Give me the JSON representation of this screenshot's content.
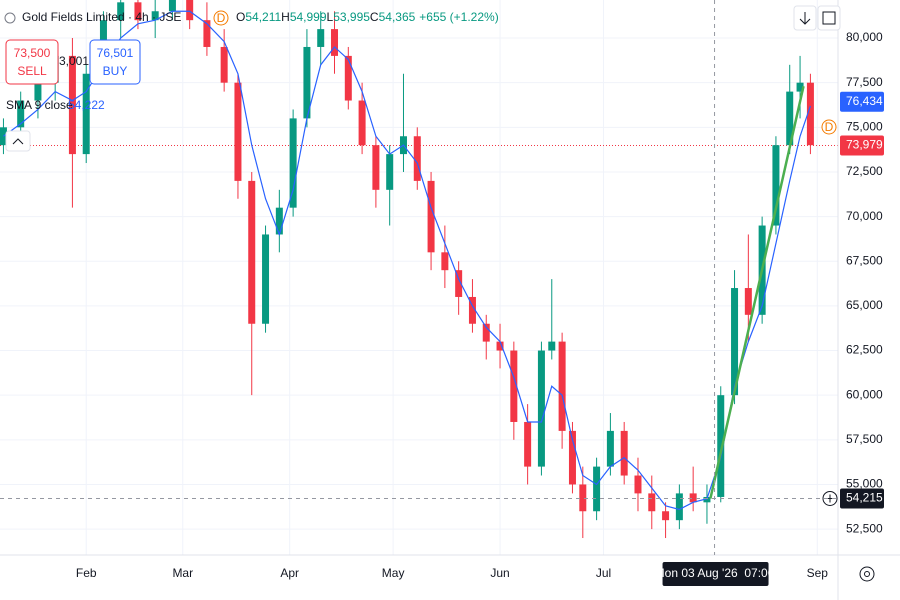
{
  "chart_data": {
    "type": "candlestick",
    "title": "Gold Fields Limited · 4h · JSE",
    "badge": "D",
    "ohlc": [
      {
        "key": "O",
        "value": "54,211"
      },
      {
        "key": "H",
        "value": "54,999"
      },
      {
        "key": "L",
        "value": "53,995"
      },
      {
        "key": "C",
        "value": "54,365"
      }
    ],
    "change": "+655 (+1.22%)",
    "sell": {
      "price": "73,500",
      "label": "SELL"
    },
    "spread": "3,001",
    "buy": {
      "price": "76,501",
      "label": "BUY"
    },
    "indicator": {
      "name": "SMA 9 close",
      "value": "54,222",
      "color": "#2962ff"
    },
    "up_color": "#089981",
    "down_color": "#f23645",
    "grid": true,
    "xlim": [
      6,
      249
    ],
    "ylim": [
      51050,
      82130
    ],
    "xticks": [
      {
        "value": 31,
        "label": "Feb"
      },
      {
        "value": 59,
        "label": "Mar"
      },
      {
        "value": 90,
        "label": "Apr"
      },
      {
        "value": 120,
        "label": "May"
      },
      {
        "value": 151,
        "label": "Jun"
      },
      {
        "value": 181,
        "label": "Jul"
      },
      {
        "value": 243,
        "label": "Sep"
      }
    ],
    "yticks": [
      {
        "value": 52500,
        "label": "52,500"
      },
      {
        "value": 55000,
        "label": "55,000"
      },
      {
        "value": 57500,
        "label": "57,500"
      },
      {
        "value": 60000,
        "label": "60,000"
      },
      {
        "value": 62500,
        "label": "62,500"
      },
      {
        "value": 65000,
        "label": "65,000"
      },
      {
        "value": 67500,
        "label": "67,500"
      },
      {
        "value": 70000,
        "label": "70,000"
      },
      {
        "value": 72500,
        "label": "72,500"
      },
      {
        "value": 75000,
        "label": "75,000"
      },
      {
        "value": 77500,
        "label": "77,500"
      },
      {
        "value": 80000,
        "label": "80,000"
      }
    ],
    "x": [
      7,
      12,
      17,
      22,
      27,
      31,
      36,
      41,
      46,
      51,
      56,
      61,
      66,
      71,
      75,
      79,
      83,
      87,
      91,
      95,
      99,
      103,
      107,
      111,
      115,
      119,
      123,
      127,
      131,
      135,
      139,
      143,
      147,
      151,
      155,
      159,
      163,
      166,
      169,
      172,
      175,
      179,
      183,
      187,
      191,
      195,
      199,
      203,
      207,
      211,
      215,
      219,
      223,
      227,
      231,
      235,
      238,
      241
    ],
    "open": [
      74000,
      75000,
      76500,
      77500,
      79000,
      73500,
      78000,
      81000,
      82000,
      81000,
      81500,
      82500,
      81000,
      79500,
      77500,
      72000,
      64000,
      69000,
      70500,
      75500,
      79500,
      80500,
      79000,
      76500,
      74000,
      71500,
      73500,
      74500,
      72000,
      68000,
      67000,
      65500,
      64000,
      63000,
      62500,
      58500,
      56000,
      62500,
      63000,
      58000,
      55000,
      53500,
      56000,
      58000,
      55500,
      54500,
      53500,
      53000,
      54500,
      54000,
      54300,
      60000,
      66000,
      64500,
      69500,
      74000,
      77000,
      77500
    ],
    "high": [
      75500,
      77000,
      78000,
      79500,
      80000,
      78500,
      81500,
      82500,
      83000,
      82500,
      83000,
      83000,
      82000,
      80500,
      78000,
      72500,
      69500,
      71500,
      76000,
      80500,
      81500,
      81500,
      79500,
      77500,
      74500,
      74000,
      78000,
      75000,
      72500,
      69500,
      67500,
      66500,
      64500,
      64000,
      63000,
      59500,
      63000,
      66500,
      63500,
      58500,
      56000,
      56500,
      59000,
      58500,
      56500,
      55500,
      54000,
      55000,
      56000,
      55000,
      60500,
      67000,
      69000,
      70000,
      74500,
      78500,
      79000,
      78000
    ],
    "low": [
      73500,
      74500,
      75500,
      76500,
      70500,
      73000,
      77500,
      80000,
      80500,
      80000,
      81000,
      80500,
      79000,
      77000,
      71000,
      60000,
      63500,
      68000,
      70000,
      75000,
      78500,
      78000,
      76000,
      73500,
      70500,
      69500,
      72500,
      71500,
      67000,
      66000,
      64500,
      63500,
      62000,
      61500,
      57500,
      55000,
      55500,
      62000,
      57000,
      54500,
      52000,
      53000,
      55500,
      55000,
      53500,
      52500,
      52000,
      52500,
      53500,
      52800,
      54000,
      59500,
      63000,
      64000,
      69000,
      73500,
      75500,
      73500
    ],
    "close": [
      75000,
      76500,
      77500,
      79000,
      73500,
      78000,
      81000,
      82000,
      81000,
      81500,
      82500,
      81000,
      79500,
      77500,
      72000,
      64000,
      69000,
      70500,
      75500,
      79500,
      80500,
      79000,
      76500,
      74000,
      71500,
      73500,
      74500,
      72000,
      68000,
      67000,
      65500,
      64000,
      63000,
      62500,
      58500,
      56000,
      62500,
      63000,
      58000,
      55000,
      53500,
      56000,
      58000,
      55500,
      54500,
      53500,
      53000,
      54500,
      54000,
      54300,
      60000,
      66000,
      64500,
      69500,
      74000,
      77000,
      77500,
      74000
    ],
    "sma": [
      74500,
      75200,
      76000,
      77000,
      76500,
      77000,
      78500,
      80000,
      80800,
      81000,
      81500,
      81500,
      80800,
      79800,
      78000,
      74000,
      71000,
      69000,
      71500,
      75500,
      78500,
      79500,
      78800,
      77000,
      74500,
      73500,
      74000,
      73000,
      70500,
      68500,
      66500,
      65000,
      63800,
      63000,
      61000,
      58500,
      58500,
      60500,
      60000,
      57500,
      55500,
      55000,
      56000,
      56500,
      55800,
      54800,
      53800,
      53600,
      54000,
      54200,
      56500,
      60500,
      63000,
      65000,
      68500,
      72000,
      74500,
      76200
    ],
    "trendline": {
      "x": [
        212,
        239
      ],
      "y": [
        54215,
        77300
      ],
      "color": "#4caf50"
    },
    "price_tags": [
      {
        "value": 76434,
        "label": "76,434",
        "color": "#2962ff"
      },
      {
        "value": 73979,
        "label": "73,979",
        "color": "#f23645",
        "style": "dotted"
      }
    ],
    "crosshair": {
      "x": 213.2,
      "y": 54215,
      "y_label": "54,215",
      "x_label": "Mon 03 Aug '26  07:00"
    }
  }
}
